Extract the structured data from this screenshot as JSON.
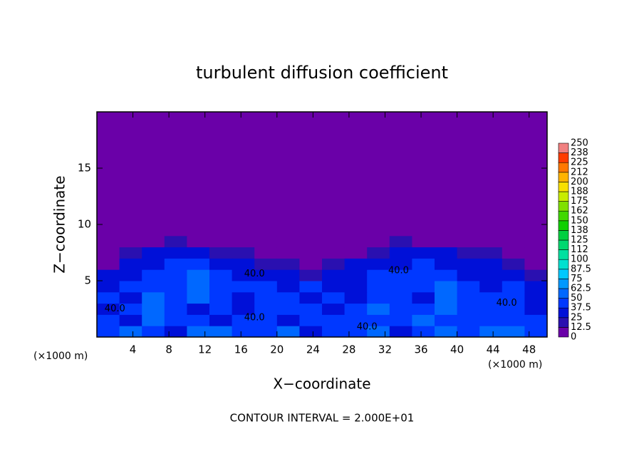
{
  "chart_data": {
    "type": "heatmap",
    "title": "turbulent diffusion coefficient",
    "x_label": "X−coordinate",
    "y_label": "Z−coordinate",
    "x_unit_left": "(×1000 m)",
    "x_unit_right": "(×1000 m)",
    "footnote": "CONTOUR INTERVAL = 2.000E+01",
    "xlim": [
      0,
      50
    ],
    "xticks": [
      4,
      8,
      12,
      16,
      20,
      24,
      28,
      32,
      36,
      40,
      44,
      48
    ],
    "ylim": [
      0,
      20
    ],
    "yticks": [
      5,
      10,
      15
    ],
    "x_edges": [
      0,
      2.5,
      5,
      7.5,
      10,
      12.5,
      15,
      17.5,
      20,
      22.5,
      25,
      27.5,
      30,
      32.5,
      35,
      37.5,
      40,
      42.5,
      45,
      47.5,
      50
    ],
    "z_edges": [
      0,
      1,
      2,
      3,
      4,
      5,
      6,
      7,
      8,
      9,
      20
    ],
    "values": [
      [
        45,
        60,
        40,
        35,
        50,
        55,
        40,
        45,
        60,
        35,
        40,
        45,
        50,
        35,
        45,
        55,
        40,
        60,
        50,
        45
      ],
      [
        40,
        35,
        55,
        40,
        45,
        35,
        40,
        38,
        35,
        42,
        38,
        40,
        45,
        38,
        50,
        40,
        45,
        38,
        42,
        40
      ],
      [
        35,
        40,
        60,
        38,
        35,
        42,
        30,
        40,
        45,
        38,
        35,
        40,
        50,
        38,
        42,
        55,
        45,
        40,
        38,
        35
      ],
      [
        38,
        35,
        50,
        45,
        55,
        38,
        35,
        40,
        42,
        35,
        38,
        32,
        40,
        45,
        35,
        50,
        40,
        38,
        42,
        30
      ],
      [
        30,
        38,
        45,
        40,
        55,
        40,
        45,
        38,
        35,
        42,
        30,
        35,
        38,
        40,
        45,
        55,
        38,
        35,
        40,
        25
      ],
      [
        25,
        35,
        40,
        38,
        50,
        45,
        35,
        30,
        28,
        20,
        28,
        35,
        40,
        45,
        38,
        40,
        35,
        30,
        25,
        15
      ],
      [
        10,
        30,
        35,
        38,
        40,
        35,
        30,
        20,
        15,
        10,
        15,
        25,
        30,
        35,
        40,
        35,
        30,
        25,
        15,
        5
      ],
      [
        0,
        15,
        30,
        35,
        25,
        20,
        15,
        10,
        5,
        0,
        5,
        10,
        20,
        30,
        35,
        30,
        20,
        15,
        5,
        0
      ],
      [
        0,
        0,
        10,
        15,
        5,
        0,
        0,
        0,
        0,
        0,
        0,
        0,
        5,
        15,
        10,
        5,
        0,
        0,
        0,
        0
      ],
      [
        0,
        0,
        0,
        0,
        0,
        0,
        0,
        0,
        0,
        0,
        0,
        0,
        0,
        0,
        0,
        0,
        0,
        0,
        0,
        0
      ]
    ],
    "contour_labels": [
      {
        "text": "40.0",
        "x": 17.5,
        "z": 5.6
      },
      {
        "text": "40.0",
        "x": 17.5,
        "z": 1.7
      },
      {
        "text": "40.0",
        "x": 30,
        "z": 0.9
      },
      {
        "text": "40.0",
        "x": 33.5,
        "z": 5.9
      },
      {
        "text": "40.0",
        "x": 45.5,
        "z": 3
      },
      {
        "text": "40.0",
        "x": 2,
        "z": 2.5
      }
    ],
    "colorbar": {
      "levels": [
        0,
        12.5,
        25,
        37.5,
        50,
        62.5,
        75,
        87.5,
        100,
        112,
        125,
        138,
        150,
        162,
        175,
        188,
        200,
        212,
        225,
        238,
        250
      ],
      "colors": [
        "#6a00a8",
        "#2a10b0",
        "#0010d8",
        "#0038ff",
        "#0068ff",
        "#0098ff",
        "#00c8ff",
        "#00e0d0",
        "#00e0a0",
        "#00d870",
        "#00d040",
        "#10d000",
        "#40d800",
        "#80e000",
        "#c8ec00",
        "#f8e000",
        "#ffb400",
        "#ff7800",
        "#ff3c00",
        "#f08080"
      ]
    }
  }
}
